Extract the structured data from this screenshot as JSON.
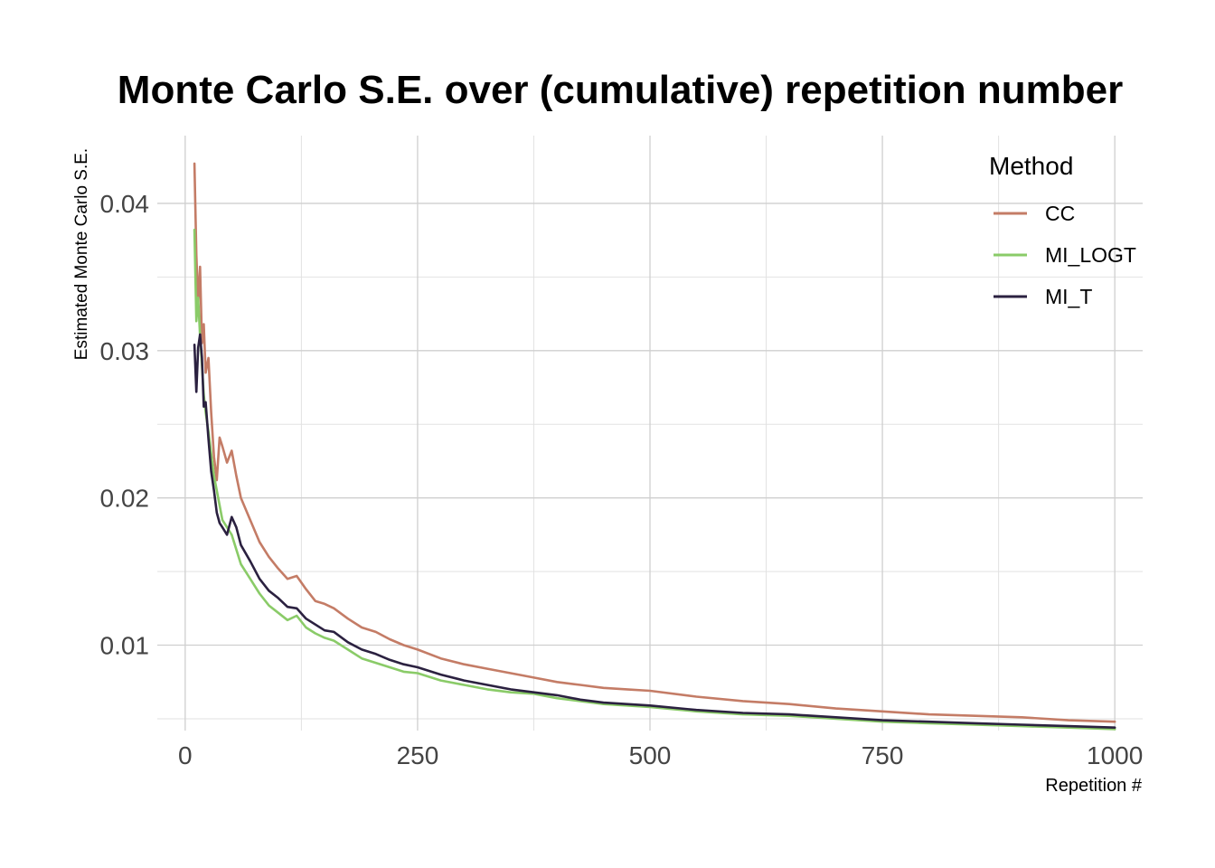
{
  "chart_data": {
    "type": "line",
    "title": "Monte Carlo S.E. over (cumulative) repetition number",
    "xlabel": "Repetition #",
    "ylabel": "Estimated Monte Carlo S.E.",
    "xlim": [
      -30,
      1030
    ],
    "ylim": [
      0.0042,
      0.0446
    ],
    "x_ticks": [
      0,
      250,
      500,
      750,
      1000
    ],
    "x_tick_labels": [
      "0",
      "250",
      "500",
      "750",
      "1000"
    ],
    "y_ticks": [
      0.01,
      0.02,
      0.03,
      0.04
    ],
    "y_tick_labels": [
      "0.01",
      "0.02",
      "0.03",
      "0.04"
    ],
    "grid": true,
    "legend": {
      "title": "Method",
      "position": "top-right"
    },
    "series": [
      {
        "name": "CC",
        "color": "#c47c66",
        "x": [
          10,
          12,
          14,
          16,
          18,
          20,
          22,
          25,
          28,
          31,
          34,
          37,
          40,
          45,
          50,
          55,
          60,
          70,
          80,
          90,
          100,
          110,
          120,
          130,
          140,
          150,
          160,
          175,
          190,
          205,
          220,
          235,
          250,
          275,
          300,
          325,
          350,
          375,
          400,
          425,
          450,
          475,
          500,
          550,
          600,
          650,
          700,
          750,
          800,
          850,
          900,
          950,
          1000
        ],
        "y": [
          0.0427,
          0.0365,
          0.0332,
          0.0357,
          0.0305,
          0.0318,
          0.0285,
          0.0295,
          0.0258,
          0.0228,
          0.0212,
          0.0241,
          0.0235,
          0.0224,
          0.0232,
          0.0215,
          0.02,
          0.0185,
          0.017,
          0.016,
          0.0152,
          0.0145,
          0.0147,
          0.0138,
          0.013,
          0.0128,
          0.0125,
          0.0118,
          0.0112,
          0.0109,
          0.0104,
          0.01,
          0.0097,
          0.0091,
          0.0087,
          0.0084,
          0.0081,
          0.0078,
          0.0075,
          0.0073,
          0.0071,
          0.007,
          0.0069,
          0.0065,
          0.0062,
          0.006,
          0.0057,
          0.0055,
          0.0053,
          0.0052,
          0.0051,
          0.0049,
          0.0048
        ]
      },
      {
        "name": "MI_LOGT",
        "color": "#8acb68",
        "x": [
          10,
          12,
          14,
          16,
          18,
          20,
          22,
          25,
          28,
          31,
          34,
          37,
          40,
          45,
          50,
          55,
          60,
          70,
          80,
          90,
          100,
          110,
          120,
          130,
          140,
          150,
          160,
          175,
          190,
          205,
          220,
          235,
          250,
          275,
          300,
          325,
          350,
          375,
          400,
          425,
          450,
          475,
          500,
          550,
          600,
          650,
          700,
          750,
          800,
          850,
          900,
          950,
          1000
        ],
        "y": [
          0.0382,
          0.032,
          0.0336,
          0.031,
          0.029,
          0.027,
          0.0258,
          0.0245,
          0.023,
          0.0215,
          0.0205,
          0.0195,
          0.0185,
          0.018,
          0.0175,
          0.0165,
          0.0155,
          0.0145,
          0.0135,
          0.0127,
          0.0122,
          0.0117,
          0.012,
          0.0112,
          0.0108,
          0.0105,
          0.0103,
          0.0097,
          0.0091,
          0.0088,
          0.0085,
          0.0082,
          0.0081,
          0.0076,
          0.0073,
          0.007,
          0.0068,
          0.0067,
          0.0064,
          0.0062,
          0.006,
          0.0059,
          0.0058,
          0.0055,
          0.0053,
          0.0052,
          0.005,
          0.0048,
          0.0047,
          0.0046,
          0.0045,
          0.0044,
          0.0043
        ]
      },
      {
        "name": "MI_T",
        "color": "#2b2140",
        "x": [
          10,
          12,
          14,
          16,
          18,
          20,
          22,
          25,
          28,
          31,
          34,
          37,
          40,
          45,
          50,
          55,
          60,
          70,
          80,
          90,
          100,
          110,
          120,
          130,
          140,
          150,
          160,
          175,
          190,
          205,
          220,
          235,
          250,
          275,
          300,
          325,
          350,
          375,
          400,
          425,
          450,
          475,
          500,
          550,
          600,
          650,
          700,
          750,
          800,
          850,
          900,
          950,
          1000
        ],
        "y": [
          0.0304,
          0.0272,
          0.0302,
          0.0311,
          0.0295,
          0.0262,
          0.0265,
          0.024,
          0.0218,
          0.0205,
          0.019,
          0.0183,
          0.018,
          0.0175,
          0.0187,
          0.018,
          0.0168,
          0.0157,
          0.0145,
          0.0137,
          0.0132,
          0.0126,
          0.0125,
          0.0118,
          0.0114,
          0.011,
          0.0109,
          0.0102,
          0.0097,
          0.0094,
          0.009,
          0.0087,
          0.0085,
          0.008,
          0.0076,
          0.0073,
          0.007,
          0.0068,
          0.0066,
          0.0063,
          0.0061,
          0.006,
          0.0059,
          0.0056,
          0.0054,
          0.0053,
          0.0051,
          0.0049,
          0.0048,
          0.0047,
          0.0046,
          0.0045,
          0.0044
        ]
      }
    ]
  }
}
